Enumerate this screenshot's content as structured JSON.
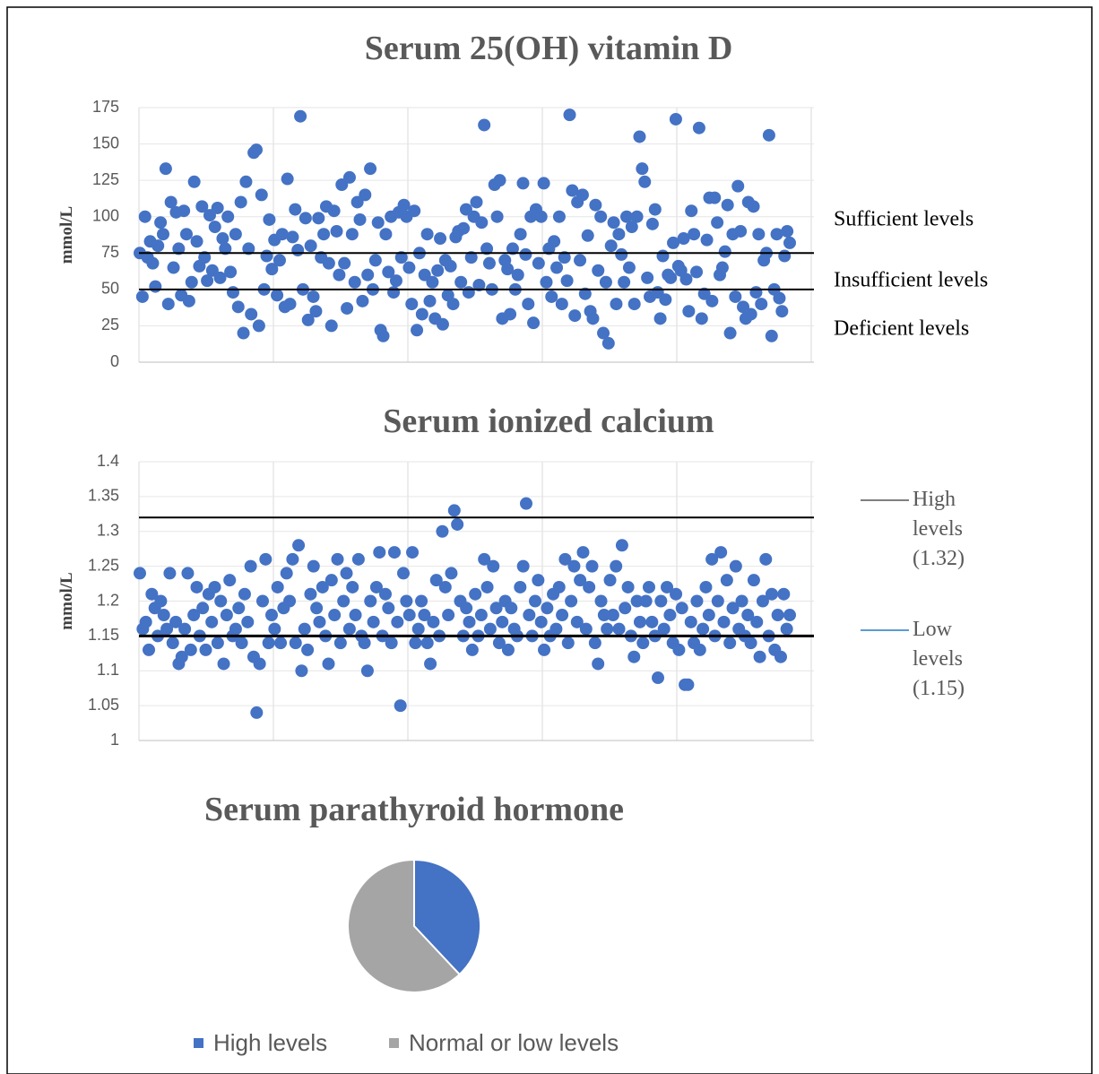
{
  "chart_data": [
    {
      "type": "scatter",
      "title": "Serum 25(OH) vitamin D",
      "y_label": "mmol/L",
      "color": "#4472c4",
      "ylim": [
        0,
        175
      ],
      "yticks": [
        0,
        25,
        50,
        75,
        100,
        125,
        150,
        175
      ],
      "grid": true,
      "reference_lines": [
        75,
        50
      ],
      "annotations": [
        "Sufficient levels",
        "Insufficient levels",
        "Deficient levels"
      ],
      "values": [
        75,
        45,
        100,
        72,
        83,
        68,
        52,
        80,
        96,
        88,
        133,
        40,
        110,
        65,
        103,
        78,
        46,
        104,
        88,
        42,
        55,
        124,
        83,
        66,
        107,
        72,
        56,
        101,
        63,
        93,
        106,
        58,
        85,
        78,
        100,
        62,
        48,
        88,
        38,
        110,
        20,
        124,
        78,
        33,
        144,
        146,
        25,
        115,
        50,
        73,
        98,
        64,
        84,
        46,
        70,
        88,
        38,
        126,
        40,
        86,
        105,
        77,
        169,
        50,
        99,
        29,
        80,
        45,
        35,
        99,
        72,
        88,
        107,
        68,
        25,
        104,
        90,
        60,
        122,
        68,
        37,
        127,
        88,
        55,
        110,
        98,
        42,
        115,
        60,
        133,
        50,
        70,
        96,
        22,
        18,
        88,
        62,
        100,
        48,
        56,
        103,
        72,
        108,
        100,
        65,
        40,
        104,
        22,
        75,
        33,
        60,
        88,
        42,
        55,
        30,
        63,
        85,
        26,
        70,
        46,
        66,
        40,
        86,
        90,
        55,
        92,
        105,
        48,
        72,
        100,
        110,
        53,
        96,
        163,
        78,
        68,
        50,
        122,
        100,
        125,
        30,
        70,
        64,
        33,
        78,
        50,
        60,
        88,
        123,
        74,
        40,
        100,
        27,
        105,
        68,
        100,
        123,
        55,
        78,
        45,
        83,
        65,
        100,
        40,
        72,
        56,
        170,
        118,
        32,
        110,
        70,
        115,
        47,
        87,
        35,
        30,
        108,
        63,
        100,
        20,
        55,
        13,
        80,
        96,
        40,
        88,
        74,
        55,
        100,
        65,
        93,
        40,
        100,
        155,
        133,
        124,
        58,
        45,
        95,
        105,
        48,
        30,
        73,
        43,
        60,
        58,
        82,
        167,
        66,
        63,
        85,
        57,
        35,
        104,
        88,
        62,
        161,
        30,
        47,
        84,
        113,
        42,
        113,
        96,
        60,
        65,
        76,
        108,
        20,
        88,
        45,
        121,
        90,
        38,
        30,
        110,
        33,
        107,
        48,
        88,
        40,
        70,
        75,
        156,
        18,
        50,
        88,
        44,
        35,
        73,
        90,
        82
      ]
    },
    {
      "type": "scatter",
      "title": "Serum ionized calcium",
      "y_label": "mmol/L",
      "color": "#4472c4",
      "ylim": [
        1,
        1.4
      ],
      "yticks": [
        1,
        1.05,
        1.1,
        1.15,
        1.2,
        1.25,
        1.3,
        1.35,
        1.4
      ],
      "grid": true,
      "reference_lines": [
        {
          "name": "High levels (1.32)",
          "value": 1.32,
          "color": "#7f7f7f"
        },
        {
          "name": "Low levels (1.15)",
          "value": 1.15,
          "color": "#5b9bd5"
        }
      ],
      "values": [
        1.24,
        1.16,
        1.17,
        1.13,
        1.21,
        1.19,
        1.15,
        1.2,
        1.18,
        1.16,
        1.24,
        1.14,
        1.17,
        1.11,
        1.12,
        1.16,
        1.24,
        1.13,
        1.18,
        1.22,
        1.15,
        1.19,
        1.13,
        1.21,
        1.17,
        1.22,
        1.14,
        1.2,
        1.11,
        1.18,
        1.23,
        1.15,
        1.16,
        1.19,
        1.14,
        1.21,
        1.17,
        1.25,
        1.12,
        1.04,
        1.11,
        1.2,
        1.26,
        1.14,
        1.18,
        1.16,
        1.22,
        1.14,
        1.19,
        1.24,
        1.2,
        1.26,
        1.14,
        1.28,
        1.1,
        1.16,
        1.13,
        1.21,
        1.25,
        1.19,
        1.17,
        1.22,
        1.15,
        1.11,
        1.23,
        1.18,
        1.26,
        1.14,
        1.2,
        1.24,
        1.16,
        1.22,
        1.18,
        1.26,
        1.15,
        1.14,
        1.1,
        1.2,
        1.17,
        1.22,
        1.27,
        1.15,
        1.21,
        1.19,
        1.14,
        1.27,
        1.17,
        1.05,
        1.24,
        1.2,
        1.18,
        1.27,
        1.14,
        1.16,
        1.2,
        1.18,
        1.14,
        1.11,
        1.17,
        1.23,
        1.15,
        1.3,
        1.22,
        1.18,
        1.24,
        1.33,
        1.31,
        1.2,
        1.15,
        1.19,
        1.17,
        1.13,
        1.21,
        1.15,
        1.18,
        1.26,
        1.22,
        1.16,
        1.25,
        1.19,
        1.14,
        1.17,
        1.2,
        1.13,
        1.19,
        1.16,
        1.15,
        1.22,
        1.25,
        1.34,
        1.18,
        1.15,
        1.2,
        1.23,
        1.17,
        1.13,
        1.19,
        1.15,
        1.21,
        1.16,
        1.22,
        1.18,
        1.26,
        1.14,
        1.2,
        1.25,
        1.17,
        1.23,
        1.27,
        1.16,
        1.22,
        1.25,
        1.14,
        1.11,
        1.2,
        1.18,
        1.16,
        1.23,
        1.18,
        1.25,
        1.16,
        1.28,
        1.19,
        1.22,
        1.15,
        1.12,
        1.2,
        1.17,
        1.14,
        1.2,
        1.22,
        1.17,
        1.15,
        1.09,
        1.2,
        1.16,
        1.22,
        1.18,
        1.14,
        1.21,
        1.13,
        1.19,
        1.08,
        1.08,
        1.17,
        1.14,
        1.2,
        1.13,
        1.16,
        1.22,
        1.18,
        1.26,
        1.15,
        1.2,
        1.27,
        1.17,
        1.23,
        1.14,
        1.19,
        1.25,
        1.16,
        1.2,
        1.15,
        1.18,
        1.14,
        1.23,
        1.17,
        1.12,
        1.2,
        1.26,
        1.15,
        1.21,
        1.13,
        1.18,
        1.12,
        1.21,
        1.16,
        1.18
      ]
    },
    {
      "type": "pie",
      "title": "Serum parathyroid hormone",
      "categories": [
        "High levels",
        "Normal or low levels"
      ],
      "values": [
        38,
        62
      ],
      "colors": [
        "#4472c4",
        "#a5a5a5"
      ]
    }
  ]
}
